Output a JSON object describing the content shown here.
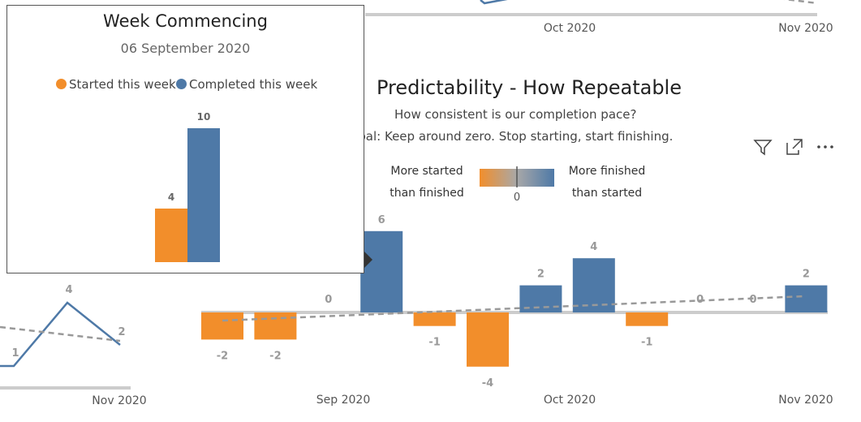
{
  "colors": {
    "started": "#F28E2B",
    "completed": "#4E79A7",
    "trend": "#999999",
    "axis": "#cccccc",
    "label": "#999999"
  },
  "top_chart": {
    "month_labels": [
      "Oct 2020",
      "Nov 2020"
    ]
  },
  "left_chart": {
    "points": [
      {
        "value": 1,
        "label": "1"
      },
      {
        "value": 4,
        "label": "4"
      },
      {
        "value": 2,
        "label": "2"
      }
    ],
    "x_label": "Nov 2020"
  },
  "main": {
    "title": "Predictability - How Repeatable",
    "subtitle": "How consistent is our completion pace?",
    "goal": "Goal: Keep around zero. Stop starting, start finishing.",
    "legend": {
      "left_line1": "More started",
      "left_line2": "than finished",
      "zero": "0",
      "right_line1": "More finished",
      "right_line2": "than started"
    },
    "icons": [
      "filter-icon",
      "focus-mode-icon",
      "more-options-icon"
    ]
  },
  "chart_data": {
    "type": "bar",
    "title": "Predictability - How Repeatable",
    "subtitle": "How consistent is our completion pace?",
    "values": [
      -2,
      -2,
      0,
      6,
      -1,
      -4,
      2,
      4,
      -1,
      0,
      0,
      2
    ],
    "labels": [
      "-2",
      "-2",
      "0",
      "6",
      "-1",
      "-4",
      "2",
      "4",
      "-1",
      "0",
      "0",
      "2"
    ],
    "x_ticks": [
      "Sep 2020",
      "Oct 2020",
      "Nov 2020"
    ],
    "trend": {
      "start": -0.6,
      "end": 1.2
    },
    "grid": false,
    "legend": "top-center"
  },
  "tooltip": {
    "title": "Week Commencing",
    "date": "06 September 2020",
    "legend_started": "Started this week",
    "legend_completed": "Completed this week",
    "bars": [
      {
        "series": "Started this week",
        "value": 4,
        "label": "4"
      },
      {
        "series": "Completed this week",
        "value": 10,
        "label": "10"
      }
    ]
  }
}
